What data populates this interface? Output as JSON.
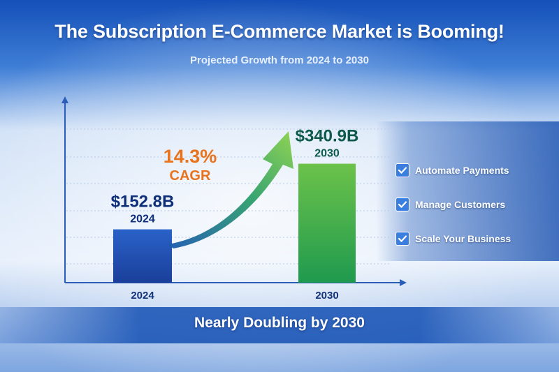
{
  "header": {
    "title": "The Subscription E-Commerce Market is Booming!",
    "subtitle": "Projected Growth from 2024 to 2030"
  },
  "chart_data": {
    "type": "bar",
    "categories": [
      "2024",
      "2030"
    ],
    "values": [
      152.8,
      340.9
    ],
    "value_labels": [
      "$152.8B",
      "$340.9B"
    ],
    "ylim": [
      0,
      520
    ],
    "grid": true,
    "annotation": {
      "value": "14.3%",
      "label": "CAGR"
    },
    "colors": {
      "bar_2024": "#1f4fb3",
      "bar_2030": "#3aa848",
      "cagr": "#e8731c"
    }
  },
  "features": [
    {
      "label": "Automate Payments",
      "icon": "checkbox-icon"
    },
    {
      "label": "Manage Customers",
      "icon": "checkbox-icon"
    },
    {
      "label": "Scale Your Business",
      "icon": "checkbox-icon"
    }
  ],
  "footer": {
    "text": "Nearly Doubling by 2030"
  }
}
